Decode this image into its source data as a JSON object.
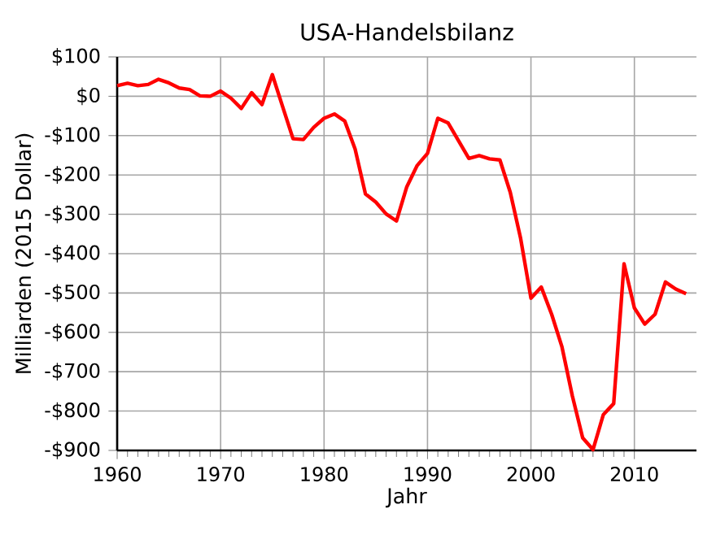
{
  "chart_data": {
    "type": "line",
    "title": "USA-Handelsbilanz",
    "xlabel": "Jahr",
    "ylabel": "Milliarden (2015 Dollar)",
    "x": [
      1960,
      1961,
      1962,
      1963,
      1964,
      1965,
      1966,
      1967,
      1968,
      1969,
      1970,
      1971,
      1972,
      1973,
      1974,
      1975,
      1976,
      1977,
      1978,
      1979,
      1980,
      1981,
      1982,
      1983,
      1984,
      1985,
      1986,
      1987,
      1988,
      1989,
      1990,
      1991,
      1992,
      1993,
      1994,
      1995,
      1996,
      1997,
      1998,
      1999,
      2000,
      2001,
      2002,
      2003,
      2004,
      2005,
      2006,
      2007,
      2008,
      2009,
      2010,
      2011,
      2012,
      2013,
      2014,
      2015
    ],
    "series": [
      {
        "color": "#ff0000",
        "values": [
          27,
          33,
          27,
          30,
          43,
          34,
          21,
          17,
          1,
          0,
          13,
          -5,
          -31,
          9,
          -21,
          55,
          -27,
          -108,
          -110,
          -79,
          -56,
          -45,
          -63,
          -134,
          -248,
          -269,
          -299,
          -317,
          -230,
          -176,
          -145,
          -56,
          -68,
          -113,
          -158,
          -151,
          -159,
          -162,
          -244,
          -361,
          -513,
          -485,
          -554,
          -637,
          -761,
          -868,
          -898,
          -809,
          -781,
          -426,
          -538,
          -579,
          -554,
          -472,
          -490,
          -502
        ]
      }
    ],
    "xlim": [
      1960,
      2016
    ],
    "ylim": [
      -900,
      100
    ],
    "xticks": [
      1960,
      1970,
      1980,
      1990,
      2000,
      2010
    ],
    "yticks": [
      {
        "value": 100,
        "label": "$100"
      },
      {
        "value": 0,
        "label": "$0"
      },
      {
        "value": -100,
        "label": "-$100"
      },
      {
        "value": -200,
        "label": "-$200"
      },
      {
        "value": -300,
        "label": "-$300"
      },
      {
        "value": -400,
        "label": "-$400"
      },
      {
        "value": -500,
        "label": "-$500"
      },
      {
        "value": -600,
        "label": "-$600"
      },
      {
        "value": -700,
        "label": "-$700"
      },
      {
        "value": -800,
        "label": "-$800"
      },
      {
        "value": -900,
        "label": "-$900"
      }
    ],
    "grid": true,
    "line_style": "solid"
  }
}
